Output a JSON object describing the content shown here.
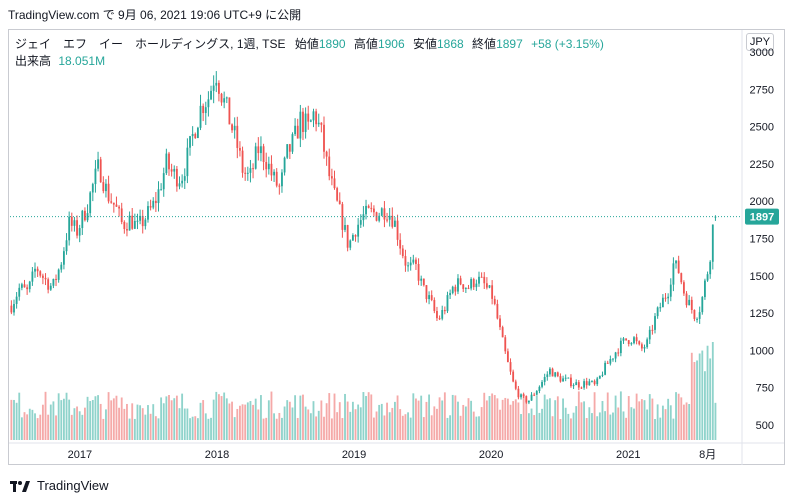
{
  "header": {
    "source_line": "TradingView.com で 9月 06, 2021 19:06 UTC+9 に公開"
  },
  "legend": {
    "symbol": "ジェイ　エフ　イー　ホールディングス, 1週, TSE",
    "open_label": "始値",
    "open_value": "1890",
    "high_label": "高値",
    "high_value": "1906",
    "low_label": "安値",
    "low_value": "1868",
    "close_label": "終値",
    "close_value": "1897",
    "change": "+58 (+3.15%)",
    "volume_label": "出来高",
    "volume_value": "18.051M"
  },
  "currency_button": "JPY",
  "footer": {
    "brand": "TradingView"
  },
  "colors": {
    "up": "#26a69a",
    "down": "#ef5350",
    "up_vol": "#8fd3cb",
    "down_vol": "#f5a9a8",
    "price_line": "#26a69a"
  },
  "chart_data": {
    "type": "candlestick",
    "y_axis_ticks": [
      "500",
      "750",
      "1000",
      "1250",
      "1500",
      "1750",
      "2000",
      "2250",
      "2500",
      "2750",
      "3000"
    ],
    "y_tick_values": [
      500,
      750,
      1000,
      1250,
      1500,
      1750,
      2000,
      2250,
      2500,
      2750,
      3000
    ],
    "ylim": [
      400,
      3050
    ],
    "x_axis_labels": [
      {
        "label": "2017",
        "t": 2017.0
      },
      {
        "label": "2018",
        "t": 2018.0
      },
      {
        "label": "2019",
        "t": 2019.0
      },
      {
        "label": "2020",
        "t": 2020.0
      },
      {
        "label": "2021",
        "t": 2021.0
      },
      {
        "label": "8月",
        "t": 2021.58
      }
    ],
    "x_range": [
      2016.49,
      2021.83
    ],
    "last_price": 1897,
    "last_price_label": "1897",
    "close_path": [
      [
        2016.5,
        1300
      ],
      [
        2016.56,
        1420
      ],
      [
        2016.62,
        1390
      ],
      [
        2016.68,
        1560
      ],
      [
        2016.74,
        1480
      ],
      [
        2016.8,
        1420
      ],
      [
        2016.86,
        1580
      ],
      [
        2016.92,
        1850
      ],
      [
        2016.98,
        1800
      ],
      [
        2017.05,
        1960
      ],
      [
        2017.1,
        2120
      ],
      [
        2017.14,
        2240
      ],
      [
        2017.2,
        2050
      ],
      [
        2017.26,
        1960
      ],
      [
        2017.31,
        1840
      ],
      [
        2017.37,
        1880
      ],
      [
        2017.42,
        1820
      ],
      [
        2017.47,
        1880
      ],
      [
        2017.53,
        1960
      ],
      [
        2017.57,
        2050
      ],
      [
        2017.63,
        2250
      ],
      [
        2017.68,
        2180
      ],
      [
        2017.74,
        2160
      ],
      [
        2017.79,
        2310
      ],
      [
        2017.84,
        2500
      ],
      [
        2017.89,
        2650
      ],
      [
        2017.94,
        2700
      ],
      [
        2017.99,
        2880
      ],
      [
        2018.04,
        2700
      ],
      [
        2018.09,
        2550
      ],
      [
        2018.14,
        2400
      ],
      [
        2018.19,
        2200
      ],
      [
        2018.24,
        2150
      ],
      [
        2018.3,
        2350
      ],
      [
        2018.35,
        2300
      ],
      [
        2018.41,
        2150
      ],
      [
        2018.46,
        2080
      ],
      [
        2018.51,
        2310
      ],
      [
        2018.56,
        2400
      ],
      [
        2018.61,
        2550
      ],
      [
        2018.67,
        2480
      ],
      [
        2018.71,
        2600
      ],
      [
        2018.76,
        2450
      ],
      [
        2018.81,
        2200
      ],
      [
        2018.86,
        2020
      ],
      [
        2018.91,
        1880
      ],
      [
        2018.96,
        1700
      ],
      [
        2019.01,
        1820
      ],
      [
        2019.07,
        1900
      ],
      [
        2019.12,
        1920
      ],
      [
        2019.18,
        1920
      ],
      [
        2019.23,
        1950
      ],
      [
        2019.29,
        1880
      ],
      [
        2019.34,
        1700
      ],
      [
        2019.39,
        1550
      ],
      [
        2019.45,
        1560
      ],
      [
        2019.5,
        1420
      ],
      [
        2019.56,
        1320
      ],
      [
        2019.61,
        1200
      ],
      [
        2019.66,
        1280
      ],
      [
        2019.72,
        1420
      ],
      [
        2019.78,
        1460
      ],
      [
        2019.83,
        1420
      ],
      [
        2019.89,
        1480
      ],
      [
        2019.94,
        1450
      ],
      [
        2020.01,
        1360
      ],
      [
        2020.06,
        1150
      ],
      [
        2020.11,
        950
      ],
      [
        2020.17,
        750
      ],
      [
        2020.22,
        680
      ],
      [
        2020.27,
        660
      ],
      [
        2020.32,
        720
      ],
      [
        2020.38,
        800
      ],
      [
        2020.43,
        870
      ],
      [
        2020.48,
        820
      ],
      [
        2020.54,
        800
      ],
      [
        2020.6,
        780
      ],
      [
        2020.65,
        770
      ],
      [
        2020.71,
        790
      ],
      [
        2020.76,
        760
      ],
      [
        2020.82,
        870
      ],
      [
        2020.87,
        940
      ],
      [
        2020.93,
        1020
      ],
      [
        2020.98,
        1070
      ],
      [
        2021.04,
        1080
      ],
      [
        2021.09,
        1000
      ],
      [
        2021.14,
        1050
      ],
      [
        2021.19,
        1200
      ],
      [
        2021.25,
        1330
      ],
      [
        2021.29,
        1400
      ],
      [
        2021.33,
        1580
      ],
      [
        2021.37,
        1530
      ],
      [
        2021.41,
        1380
      ],
      [
        2021.45,
        1300
      ],
      [
        2021.49,
        1230
      ],
      [
        2021.53,
        1300
      ],
      [
        2021.56,
        1450
      ],
      [
        2021.59,
        1580
      ],
      [
        2021.62,
        1850
      ],
      [
        2021.65,
        1897
      ]
    ],
    "volume_range": [
      0,
      30
    ]
  }
}
